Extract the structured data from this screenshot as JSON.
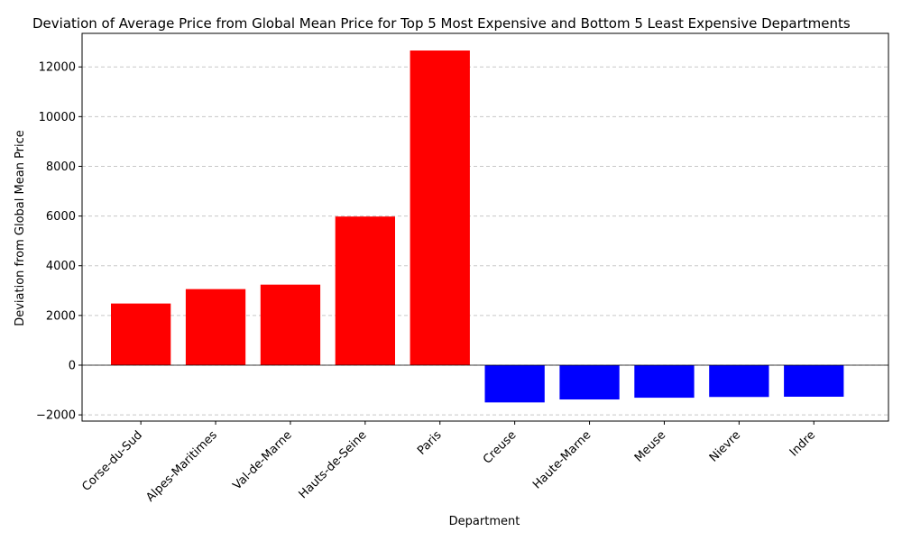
{
  "chart_data": {
    "type": "bar",
    "title": "Deviation of Average Price from Global Mean Price for Top 5 Most Expensive and Bottom 5 Least Expensive Departments",
    "xlabel": "Department",
    "ylabel": "Deviation from Global Mean Price",
    "categories": [
      "Corse-du-Sud",
      "Alpes-Maritimes",
      "Val-de-Marne",
      "Hauts-de-Seine",
      "Paris",
      "Creuse",
      "Haute-Marne",
      "Meuse",
      "Nievre",
      "Indre"
    ],
    "values": [
      2480,
      3060,
      3240,
      5980,
      12660,
      -1500,
      -1380,
      -1310,
      -1280,
      -1270
    ],
    "bar_colors": [
      "#ff0000",
      "#ff0000",
      "#ff0000",
      "#ff0000",
      "#ff0000",
      "#0000ff",
      "#0000ff",
      "#0000ff",
      "#0000ff",
      "#0000ff"
    ],
    "ylim": [
      -2250,
      13350
    ],
    "yticks": [
      -2000,
      0,
      2000,
      4000,
      6000,
      8000,
      10000,
      12000
    ],
    "ytick_labels": [
      "−2000",
      "0",
      "2000",
      "4000",
      "6000",
      "8000",
      "10000",
      "12000"
    ],
    "grid": "y-dashed",
    "zero_line": true
  }
}
